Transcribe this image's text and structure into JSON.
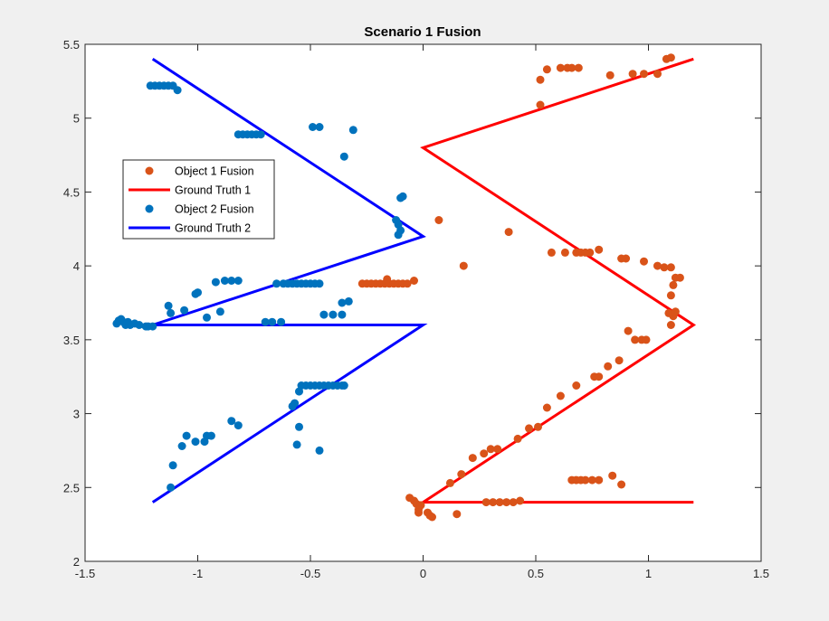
{
  "chart_data": {
    "type": "scatter",
    "title": "Scenario 1 Fusion",
    "xlabel": "",
    "ylabel": "",
    "xlim": [
      -1.5,
      1.5
    ],
    "ylim": [
      2,
      5.5
    ],
    "xticks": [
      -1.5,
      -1,
      -0.5,
      0,
      0.5,
      1,
      1.5
    ],
    "xtick_labels": [
      "-1.5",
      "-1",
      "-0.5",
      "0",
      "0.5",
      "1",
      "1.5"
    ],
    "yticks": [
      2,
      2.5,
      3,
      3.5,
      4,
      4.5,
      5,
      5.5
    ],
    "ytick_labels": [
      "2",
      "2.5",
      "3",
      "3.5",
      "4",
      "4.5",
      "5",
      "5.5"
    ],
    "grid": false,
    "legend_position": "left",
    "series": [
      {
        "name": "Object 1 Fusion",
        "kind": "scatter",
        "color": "#D95319",
        "points": [
          [
            -0.06,
            2.43
          ],
          [
            -0.04,
            2.41
          ],
          [
            -0.03,
            2.39
          ],
          [
            -0.01,
            2.38
          ],
          [
            -0.02,
            2.35
          ],
          [
            -0.02,
            2.33
          ],
          [
            0.02,
            2.33
          ],
          [
            0.03,
            2.31
          ],
          [
            0.04,
            2.3
          ],
          [
            0.15,
            2.32
          ],
          [
            0.28,
            2.4
          ],
          [
            0.31,
            2.4
          ],
          [
            0.34,
            2.4
          ],
          [
            0.37,
            2.4
          ],
          [
            0.4,
            2.4
          ],
          [
            0.43,
            2.41
          ],
          [
            0.12,
            2.53
          ],
          [
            0.17,
            2.59
          ],
          [
            0.22,
            2.7
          ],
          [
            0.27,
            2.73
          ],
          [
            0.3,
            2.76
          ],
          [
            0.33,
            2.76
          ],
          [
            0.42,
            2.83
          ],
          [
            0.47,
            2.9
          ],
          [
            0.51,
            2.91
          ],
          [
            0.55,
            3.04
          ],
          [
            0.61,
            3.12
          ],
          [
            0.68,
            3.19
          ],
          [
            0.76,
            3.25
          ],
          [
            0.78,
            3.25
          ],
          [
            0.82,
            3.32
          ],
          [
            0.87,
            3.36
          ],
          [
            0.91,
            3.56
          ],
          [
            0.94,
            3.5
          ],
          [
            0.97,
            3.5
          ],
          [
            0.99,
            3.5
          ],
          [
            1.1,
            3.6
          ],
          [
            1.11,
            3.66
          ],
          [
            1.09,
            3.68
          ],
          [
            1.12,
            3.69
          ],
          [
            1.1,
            3.8
          ],
          [
            1.11,
            3.87
          ],
          [
            1.12,
            3.92
          ],
          [
            1.14,
            3.92
          ],
          [
            1.07,
            3.99
          ],
          [
            1.1,
            3.99
          ],
          [
            1.04,
            4.0
          ],
          [
            0.98,
            4.03
          ],
          [
            0.9,
            4.05
          ],
          [
            0.88,
            4.05
          ],
          [
            0.57,
            4.09
          ],
          [
            0.63,
            4.09
          ],
          [
            0.68,
            4.09
          ],
          [
            0.7,
            4.09
          ],
          [
            0.74,
            4.09
          ],
          [
            0.78,
            4.11
          ],
          [
            0.72,
            4.09
          ],
          [
            0.38,
            4.23
          ],
          [
            0.07,
            4.31
          ],
          [
            0.18,
            4.0
          ],
          [
            -0.27,
            3.88
          ],
          [
            -0.25,
            3.88
          ],
          [
            -0.23,
            3.88
          ],
          [
            -0.21,
            3.88
          ],
          [
            -0.19,
            3.88
          ],
          [
            -0.17,
            3.88
          ],
          [
            -0.15,
            3.88
          ],
          [
            -0.13,
            3.88
          ],
          [
            -0.11,
            3.88
          ],
          [
            -0.09,
            3.88
          ],
          [
            -0.07,
            3.88
          ],
          [
            -0.04,
            3.9
          ],
          [
            -0.16,
            3.91
          ],
          [
            0.52,
            5.09
          ],
          [
            0.52,
            5.26
          ],
          [
            0.55,
            5.33
          ],
          [
            0.61,
            5.34
          ],
          [
            0.64,
            5.34
          ],
          [
            0.66,
            5.34
          ],
          [
            0.69,
            5.34
          ],
          [
            0.83,
            5.29
          ],
          [
            0.93,
            5.3
          ],
          [
            0.98,
            5.3
          ],
          [
            1.04,
            5.3
          ],
          [
            1.08,
            5.4
          ],
          [
            1.1,
            5.41
          ],
          [
            0.66,
            2.55
          ],
          [
            0.68,
            2.55
          ],
          [
            0.7,
            2.55
          ],
          [
            0.72,
            2.55
          ],
          [
            0.75,
            2.55
          ],
          [
            0.78,
            2.55
          ],
          [
            0.84,
            2.58
          ],
          [
            0.88,
            2.52
          ]
        ]
      },
      {
        "name": "Ground Truth 1",
        "kind": "line",
        "color": "#FF0000",
        "points": [
          [
            1.2,
            2.4
          ],
          [
            0,
            2.4
          ],
          [
            1.2,
            3.6
          ],
          [
            0,
            4.8
          ],
          [
            1.2,
            5.4
          ]
        ]
      },
      {
        "name": "Object 2 Fusion",
        "kind": "scatter",
        "color": "#0072BD",
        "points": [
          [
            -1.21,
            5.22
          ],
          [
            -1.19,
            5.22
          ],
          [
            -1.17,
            5.22
          ],
          [
            -1.15,
            5.22
          ],
          [
            -1.13,
            5.22
          ],
          [
            -1.11,
            5.22
          ],
          [
            -1.09,
            5.19
          ],
          [
            -0.82,
            4.89
          ],
          [
            -0.8,
            4.89
          ],
          [
            -0.78,
            4.89
          ],
          [
            -0.76,
            4.89
          ],
          [
            -0.74,
            4.89
          ],
          [
            -0.72,
            4.89
          ],
          [
            -0.49,
            4.94
          ],
          [
            -0.46,
            4.94
          ],
          [
            -0.31,
            4.92
          ],
          [
            -0.35,
            4.74
          ],
          [
            -0.1,
            4.46
          ],
          [
            -0.09,
            4.47
          ],
          [
            -0.12,
            4.31
          ],
          [
            -0.11,
            4.28
          ],
          [
            -0.1,
            4.24
          ],
          [
            -0.11,
            4.21
          ],
          [
            -0.92,
            3.89
          ],
          [
            -0.88,
            3.9
          ],
          [
            -0.85,
            3.9
          ],
          [
            -0.82,
            3.9
          ],
          [
            -0.65,
            3.88
          ],
          [
            -0.62,
            3.88
          ],
          [
            -0.6,
            3.88
          ],
          [
            -0.58,
            3.88
          ],
          [
            -0.56,
            3.88
          ],
          [
            -0.54,
            3.88
          ],
          [
            -0.52,
            3.88
          ],
          [
            -0.5,
            3.88
          ],
          [
            -0.48,
            3.88
          ],
          [
            -0.46,
            3.88
          ],
          [
            -1.01,
            3.81
          ],
          [
            -1.0,
            3.82
          ],
          [
            -1.13,
            3.73
          ],
          [
            -1.06,
            3.7
          ],
          [
            -1.12,
            3.68
          ],
          [
            -0.96,
            3.65
          ],
          [
            -0.9,
            3.69
          ],
          [
            -0.7,
            3.62
          ],
          [
            -0.67,
            3.62
          ],
          [
            -0.63,
            3.62
          ],
          [
            -0.36,
            3.75
          ],
          [
            -0.33,
            3.76
          ],
          [
            -0.36,
            3.67
          ],
          [
            -0.44,
            3.67
          ],
          [
            -0.4,
            3.67
          ],
          [
            -1.36,
            3.61
          ],
          [
            -1.35,
            3.63
          ],
          [
            -1.34,
            3.64
          ],
          [
            -1.33,
            3.62
          ],
          [
            -1.32,
            3.6
          ],
          [
            -1.31,
            3.62
          ],
          [
            -1.3,
            3.6
          ],
          [
            -1.28,
            3.61
          ],
          [
            -1.26,
            3.6
          ],
          [
            -1.23,
            3.59
          ],
          [
            -1.2,
            3.59
          ],
          [
            -1.22,
            3.59
          ],
          [
            -0.54,
            3.19
          ],
          [
            -0.52,
            3.19
          ],
          [
            -0.5,
            3.19
          ],
          [
            -0.48,
            3.19
          ],
          [
            -0.46,
            3.19
          ],
          [
            -0.44,
            3.19
          ],
          [
            -0.42,
            3.19
          ],
          [
            -0.4,
            3.19
          ],
          [
            -0.38,
            3.19
          ],
          [
            -0.36,
            3.19
          ],
          [
            -0.35,
            3.19
          ],
          [
            -0.55,
            3.15
          ],
          [
            -0.57,
            3.07
          ],
          [
            -0.58,
            3.05
          ],
          [
            -0.55,
            2.91
          ],
          [
            -0.56,
            2.79
          ],
          [
            -0.46,
            2.75
          ],
          [
            -0.85,
            2.95
          ],
          [
            -0.82,
            2.92
          ],
          [
            -1.05,
            2.85
          ],
          [
            -1.07,
            2.78
          ],
          [
            -1.01,
            2.81
          ],
          [
            -0.97,
            2.81
          ],
          [
            -0.96,
            2.85
          ],
          [
            -0.94,
            2.85
          ],
          [
            -1.11,
            2.65
          ],
          [
            -1.12,
            2.5
          ]
        ]
      },
      {
        "name": "Ground Truth 2",
        "kind": "line",
        "color": "#0000FF",
        "points": [
          [
            -1.2,
            2.4
          ],
          [
            0,
            3.6
          ],
          [
            -1.2,
            3.6
          ],
          [
            0,
            4.2
          ],
          [
            -1.2,
            5.4
          ]
        ]
      }
    ]
  }
}
